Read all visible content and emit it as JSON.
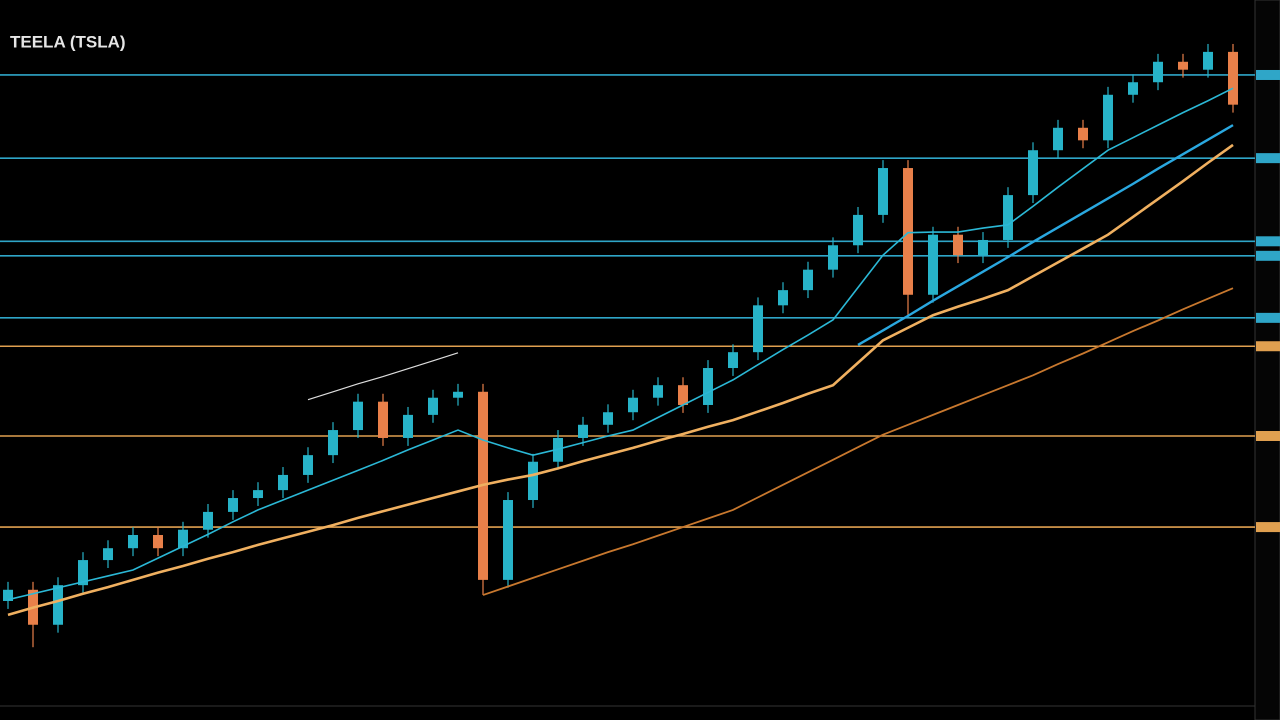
{
  "chart_data": {
    "type": "candlestick",
    "title": "TEELA (TSLA)",
    "categories": [
      null,
      null,
      null,
      null,
      null,
      null,
      null,
      null,
      null,
      null,
      null,
      null,
      null,
      null,
      null,
      null,
      null,
      null,
      null,
      null,
      null,
      null,
      null,
      null,
      null,
      null,
      null,
      null,
      null,
      null,
      null,
      null,
      null,
      null,
      null,
      null,
      null,
      null,
      null,
      null,
      null,
      null,
      null,
      null,
      null,
      null,
      null,
      null,
      null,
      null
    ],
    "open": [
      15.0,
      16.7,
      11.4,
      17.4,
      21.2,
      23.0,
      25.0,
      23.0,
      25.8,
      28.5,
      30.6,
      31.8,
      34.1,
      37.1,
      40.9,
      45.2,
      39.7,
      43.2,
      45.8,
      46.7,
      18.2,
      30.3,
      36.1,
      39.7,
      41.7,
      43.6,
      45.8,
      47.7,
      44.7,
      50.3,
      52.7,
      59.8,
      62.1,
      65.2,
      68.9,
      73.5,
      80.6,
      61.4,
      70.5,
      67.4,
      69.7,
      76.5,
      83.3,
      86.7,
      84.8,
      91.7,
      93.6,
      96.7,
      95.5,
      98.2
    ],
    "high": [
      17.9,
      17.9,
      18.6,
      22.4,
      24.2,
      26.2,
      26.2,
      27.0,
      29.7,
      31.8,
      33.0,
      35.3,
      38.3,
      42.1,
      46.4,
      46.4,
      44.4,
      47.0,
      47.9,
      47.9,
      31.5,
      37.3,
      40.9,
      42.9,
      44.8,
      47.0,
      48.9,
      48.9,
      51.5,
      53.9,
      61.0,
      63.3,
      66.4,
      70.1,
      74.7,
      81.8,
      81.8,
      71.7,
      71.7,
      70.9,
      77.7,
      84.5,
      87.9,
      87.9,
      92.9,
      94.8,
      97.9,
      97.9,
      99.4,
      99.4
    ],
    "low": [
      13.8,
      8.0,
      10.2,
      16.2,
      20.0,
      21.8,
      21.8,
      21.8,
      24.6,
      27.3,
      29.4,
      30.6,
      32.9,
      35.9,
      39.7,
      38.5,
      38.5,
      42.0,
      44.6,
      15.9,
      17.0,
      29.1,
      34.9,
      38.5,
      40.5,
      42.4,
      44.6,
      43.5,
      43.5,
      49.1,
      51.5,
      58.6,
      60.9,
      64.0,
      67.7,
      72.3,
      58.0,
      60.2,
      66.2,
      66.2,
      68.5,
      75.3,
      82.1,
      83.6,
      83.6,
      90.5,
      92.4,
      94.3,
      94.3,
      89.0
    ],
    "close": [
      16.7,
      11.4,
      17.4,
      21.2,
      23.0,
      25.0,
      23.0,
      25.8,
      28.5,
      30.6,
      31.8,
      34.1,
      37.1,
      40.9,
      45.2,
      39.7,
      43.2,
      45.8,
      46.7,
      18.2,
      30.3,
      36.1,
      39.7,
      41.7,
      43.6,
      45.8,
      47.7,
      44.7,
      50.3,
      52.7,
      59.8,
      62.1,
      65.2,
      68.9,
      73.5,
      80.6,
      61.4,
      70.5,
      67.4,
      69.7,
      76.5,
      83.3,
      86.7,
      84.8,
      91.7,
      93.6,
      96.7,
      95.5,
      98.2,
      90.2
    ],
    "up_color": "#27b3c8",
    "down_color": "#e8804a",
    "lines": [
      {
        "color": "#2bb8d6",
        "width": 1.6,
        "values": [
          15.2,
          16.1,
          17.0,
          17.9,
          18.8,
          19.7,
          21.5,
          23.3,
          25.1,
          27.0,
          28.8,
          30.3,
          31.8,
          33.3,
          34.8,
          36.3,
          37.9,
          39.4,
          40.9,
          39.4,
          38.2,
          37.1,
          38.0,
          39.0,
          40.0,
          40.9,
          42.8,
          44.7,
          46.6,
          48.5,
          50.8,
          53.1,
          55.3,
          57.6,
          62.5,
          67.4,
          70.8,
          70.9,
          70.9,
          71.5,
          72.0,
          74.8,
          77.7,
          80.5,
          83.3,
          85.2,
          87.1,
          89.0,
          90.8,
          92.7
        ]
      },
      {
        "color": "#f0b060",
        "width": 2.6,
        "values": [
          12.9,
          14.0,
          15.0,
          16.1,
          17.1,
          18.2,
          19.3,
          20.3,
          21.4,
          22.4,
          23.5,
          24.5,
          25.5,
          26.5,
          27.6,
          28.6,
          29.6,
          30.6,
          31.6,
          32.6,
          33.4,
          34.1,
          35.1,
          36.2,
          37.2,
          38.2,
          39.3,
          40.3,
          41.4,
          42.4,
          43.7,
          45.0,
          46.4,
          47.7,
          51.1,
          54.5,
          56.4,
          58.3,
          59.6,
          60.8,
          62.1,
          64.2,
          66.3,
          68.4,
          70.5,
          73.2,
          75.9,
          78.6,
          81.4,
          84.1
        ]
      },
      {
        "color": "#c8782e",
        "width": 1.8,
        "values": [
          null,
          null,
          null,
          null,
          null,
          null,
          null,
          null,
          null,
          null,
          null,
          null,
          null,
          null,
          null,
          null,
          null,
          null,
          null,
          15.9,
          17.2,
          18.5,
          19.8,
          21.1,
          22.4,
          23.6,
          24.9,
          26.2,
          27.5,
          28.8,
          30.7,
          32.6,
          34.5,
          36.4,
          38.3,
          40.2,
          41.7,
          43.2,
          44.7,
          46.2,
          47.7,
          49.2,
          50.9,
          52.5,
          54.2,
          55.9,
          57.5,
          59.2,
          60.8,
          62.4
        ]
      },
      {
        "color": "#2aa8e0",
        "width": 2.4,
        "values": [
          null,
          null,
          null,
          null,
          null,
          null,
          null,
          null,
          null,
          null,
          null,
          null,
          null,
          null,
          null,
          null,
          null,
          null,
          null,
          null,
          null,
          null,
          null,
          null,
          null,
          null,
          null,
          null,
          null,
          null,
          null,
          null,
          null,
          null,
          53.8,
          56.0,
          58.2,
          60.5,
          62.7,
          64.9,
          67.1,
          69.4,
          71.6,
          73.8,
          76.0,
          78.2,
          80.5,
          82.7,
          84.9,
          87.1
        ]
      },
      {
        "color": "#dddddd",
        "width": 1.2,
        "values": [
          null,
          null,
          null,
          null,
          null,
          null,
          null,
          null,
          null,
          null,
          null,
          null,
          45.5,
          46.7,
          47.9,
          49.0,
          50.2,
          51.4,
          52.6,
          null,
          null,
          null,
          null,
          null,
          null,
          null,
          null,
          null,
          null,
          null,
          null,
          null,
          null,
          null,
          null,
          null,
          null,
          null,
          null,
          null,
          null,
          null,
          null,
          null,
          null,
          null,
          null,
          null,
          null,
          null
        ]
      }
    ],
    "levels": [
      {
        "value": 94.7,
        "color": "#2fa6c8"
      },
      {
        "value": 82.1,
        "color": "#2fa6c8"
      },
      {
        "value": 69.5,
        "color": "#2fa6c8"
      },
      {
        "value": 67.3,
        "color": "#2fa6c8"
      },
      {
        "value": 57.9,
        "color": "#2fa6c8"
      },
      {
        "value": 53.6,
        "color": "#e0a050"
      },
      {
        "value": 40.0,
        "color": "#e0a050"
      },
      {
        "value": 26.2,
        "color": "#e0a050"
      }
    ],
    "ylim": [
      0,
      100
    ]
  }
}
